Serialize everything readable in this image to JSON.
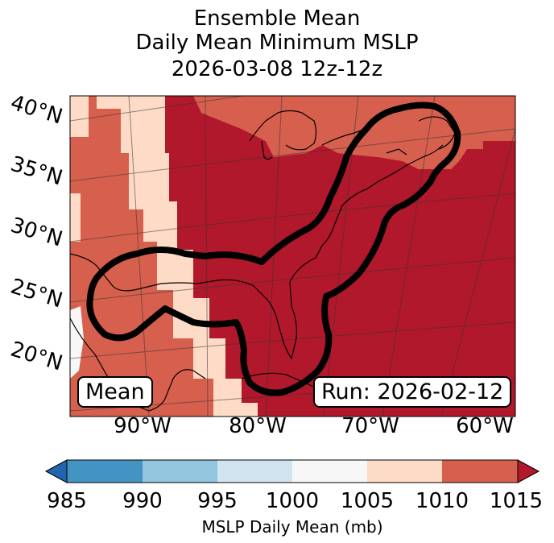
{
  "title": {
    "line1": "Ensemble Mean",
    "line2": "Daily Mean Minimum MSLP",
    "line3": "2026-03-08 12z-12z"
  },
  "map": {
    "lat_labels": [
      "40°N",
      "35°N",
      "30°N",
      "25°N",
      "20°N"
    ],
    "lon_labels": [
      "90°W",
      "80°W",
      "70°W",
      "60°W"
    ],
    "mean_label": "Mean",
    "run_label": "Run: 2026-02-12"
  },
  "colorbar": {
    "ticks": [
      "985",
      "990",
      "995",
      "1000",
      "1005",
      "1010",
      "1015"
    ],
    "label": "MSLP Daily Mean (mb)",
    "colors": [
      "#2166ac",
      "#4393c3",
      "#92c5de",
      "#d1e5f0",
      "#f7f7f7",
      "#fddbc7",
      "#d6604d",
      "#b2182b"
    ]
  },
  "colors": {
    "c1000_1005": "#f7f7f7",
    "c1005_1010": "#fddbc7",
    "c1010_1015": "#d6604d",
    "c1015_plus": "#b2182b",
    "contour": "#000000"
  }
}
